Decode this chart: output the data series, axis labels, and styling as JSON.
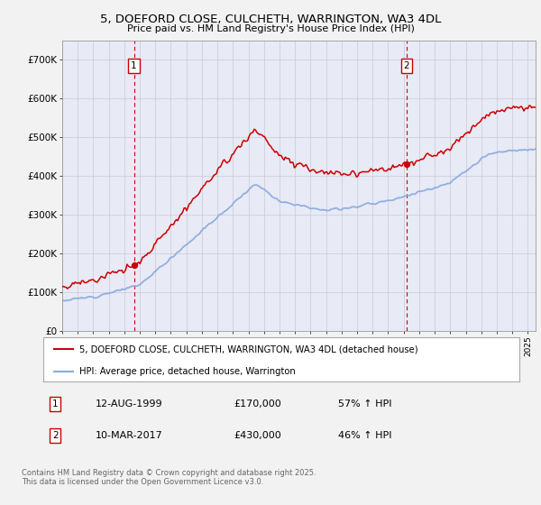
{
  "title": "5, DOEFORD CLOSE, CULCHETH, WARRINGTON, WA3 4DL",
  "subtitle": "Price paid vs. HM Land Registry's House Price Index (HPI)",
  "legend_label_red": "5, DOEFORD CLOSE, CULCHETH, WARRINGTON, WA3 4DL (detached house)",
  "legend_label_blue": "HPI: Average price, detached house, Warrington",
  "transaction1_date": "12-AUG-1999",
  "transaction1_price": "£170,000",
  "transaction1_hpi": "57% ↑ HPI",
  "transaction2_date": "10-MAR-2017",
  "transaction2_price": "£430,000",
  "transaction2_hpi": "46% ↑ HPI",
  "footer": "Contains HM Land Registry data © Crown copyright and database right 2025.\nThis data is licensed under the Open Government Licence v3.0.",
  "ylim": [
    0,
    750000
  ],
  "yticks": [
    0,
    100000,
    200000,
    300000,
    400000,
    500000,
    600000,
    700000
  ],
  "ytick_labels": [
    "£0",
    "£100K",
    "£200K",
    "£300K",
    "£400K",
    "£500K",
    "£600K",
    "£700K"
  ],
  "fig_bg_color": "#f2f2f2",
  "plot_bg_color": "#e8eaf6",
  "red_color": "#cc0000",
  "blue_color": "#88aadd",
  "transaction1_x": 1999.62,
  "transaction2_x": 2017.19
}
